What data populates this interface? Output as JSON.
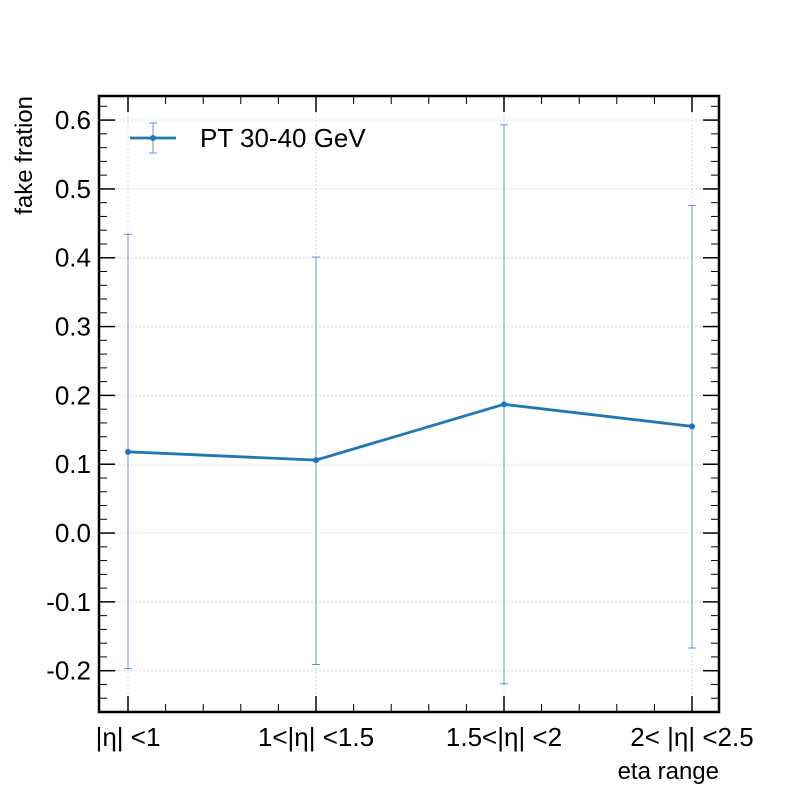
{
  "chart_data": {
    "type": "line",
    "title": "",
    "xlabel": "eta range",
    "ylabel": "fake fration",
    "categories": [
      "|η| <1",
      "1<|η| <1.5",
      "1.5<|η| <2",
      "2< |η| <2.5"
    ],
    "series": [
      {
        "name": "PT 30-40 GeV",
        "values": [
          0.118,
          0.106,
          0.187,
          0.155
        ],
        "err_low": [
          -0.197,
          -0.191,
          -0.219,
          -0.167
        ],
        "err_high": [
          0.434,
          0.401,
          0.593,
          0.476
        ],
        "color": "#1f77b4",
        "errorbar_color": "#6b8fd6"
      }
    ],
    "ylim": [
      -0.26,
      0.635
    ],
    "yticks": [
      "-0.2",
      "-0.1",
      "0.0",
      "0.1",
      "0.2",
      "0.3",
      "0.4",
      "0.5",
      "0.6"
    ],
    "grid": true,
    "legend_position": "top-left"
  }
}
